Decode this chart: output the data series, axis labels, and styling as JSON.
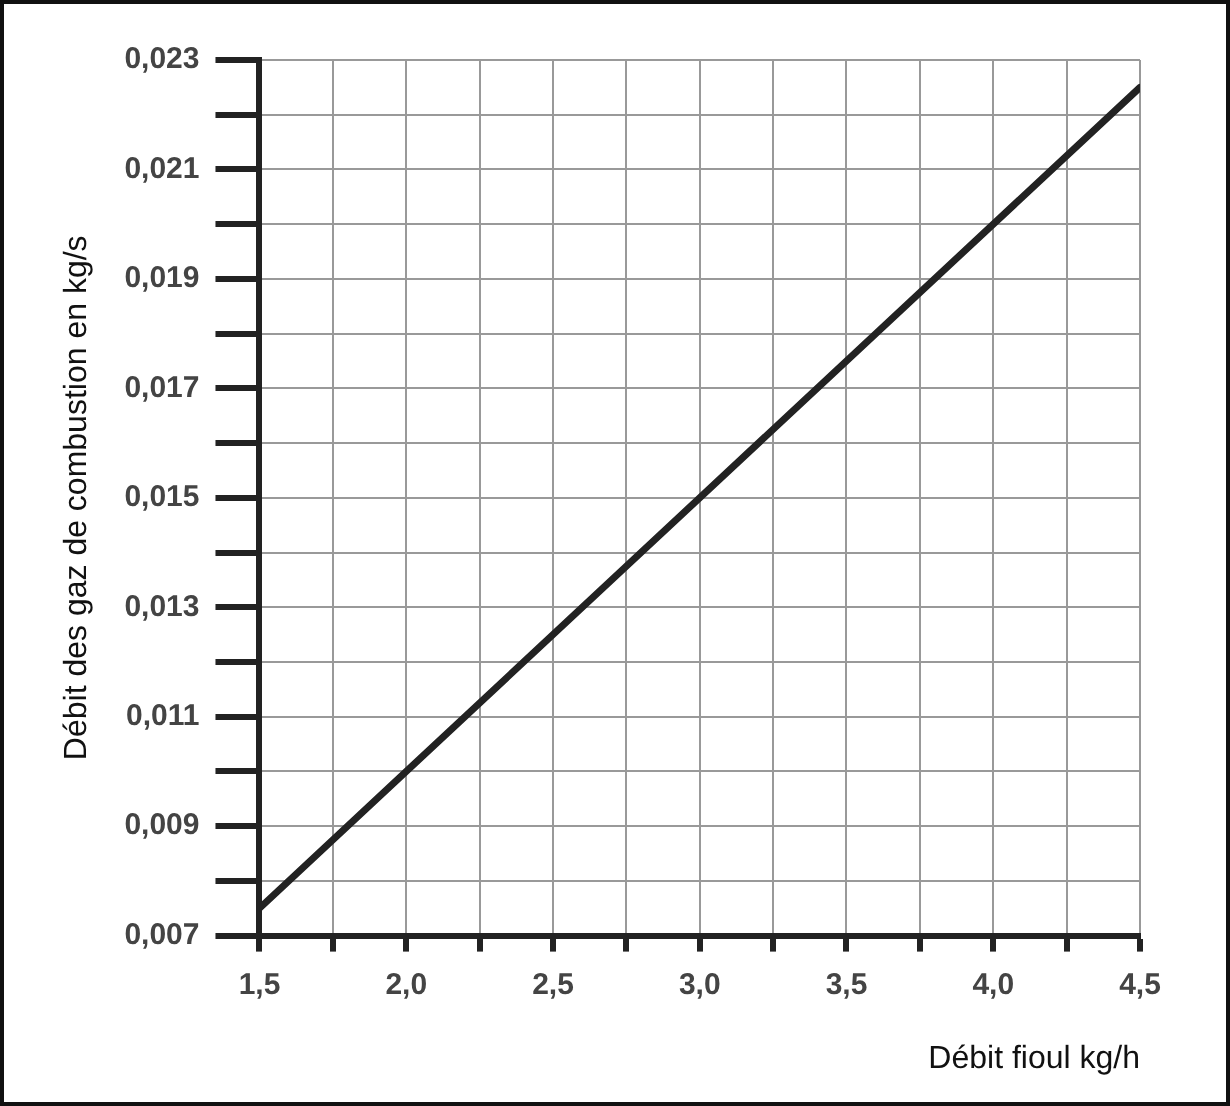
{
  "chart_data": {
    "type": "line",
    "xlabel": "Débit fioul kg/h",
    "ylabel": "Débit des gaz de combustion en kg/s",
    "x": [
      1.5,
      4.5
    ],
    "series": [
      {
        "color": "#222222",
        "values": [
          0.0075,
          0.0225
        ]
      }
    ],
    "xlim": [
      1.5,
      4.5
    ],
    "xticks": [
      {
        "value": 1.5,
        "label": "1,5"
      },
      {
        "value": 1.75,
        "label": null
      },
      {
        "value": 2.0,
        "label": "2,0"
      },
      {
        "value": 2.25,
        "label": null
      },
      {
        "value": 2.5,
        "label": "2,5"
      },
      {
        "value": 2.75,
        "label": null
      },
      {
        "value": 3.0,
        "label": "3,0"
      },
      {
        "value": 3.25,
        "label": null
      },
      {
        "value": 3.5,
        "label": "3,5"
      },
      {
        "value": 3.75,
        "label": null
      },
      {
        "value": 4.0,
        "label": "4,0"
      },
      {
        "value": 4.25,
        "label": null
      },
      {
        "value": 4.5,
        "label": "4,5"
      }
    ],
    "ylim": [
      0.007,
      0.023
    ],
    "yticks": [
      {
        "value": 0.007,
        "label": "0,007"
      },
      {
        "value": 0.008,
        "label": null
      },
      {
        "value": 0.009,
        "label": "0,009"
      },
      {
        "value": 0.01,
        "label": null
      },
      {
        "value": 0.011,
        "label": "0,011"
      },
      {
        "value": 0.012,
        "label": null
      },
      {
        "value": 0.013,
        "label": "0,013"
      },
      {
        "value": 0.014,
        "label": null
      },
      {
        "value": 0.015,
        "label": "0,015"
      },
      {
        "value": 0.016,
        "label": null
      },
      {
        "value": 0.017,
        "label": "0,017"
      },
      {
        "value": 0.018,
        "label": null
      },
      {
        "value": 0.019,
        "label": "0,019"
      },
      {
        "value": 0.02,
        "label": null
      },
      {
        "value": 0.021,
        "label": "0,021"
      },
      {
        "value": 0.022,
        "label": null
      },
      {
        "value": 0.023,
        "label": "0,023"
      }
    ],
    "grid": true,
    "legend": false,
    "marker": "none",
    "line_style": "solid"
  }
}
